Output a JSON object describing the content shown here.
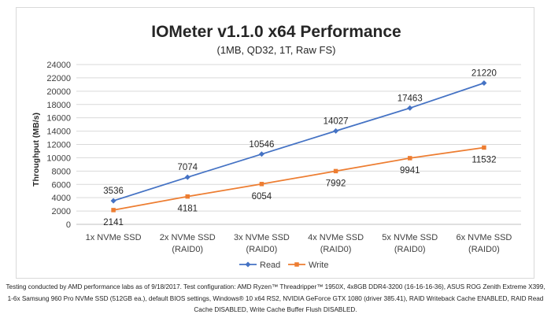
{
  "chart_data": {
    "type": "line",
    "title": "IOMeter v1.1.0 x64 Performance",
    "subtitle": "(1MB, QD32, 1T, Raw FS)",
    "xlabel": "",
    "ylabel": "Throughput (MB/s)",
    "ylim": [
      0,
      24000
    ],
    "yticks": [
      "0",
      "2000",
      "4000",
      "6000",
      "8000",
      "10000",
      "12000",
      "14000",
      "16000",
      "18000",
      "20000",
      "22000",
      "24000"
    ],
    "grid": "horizontal",
    "legend": "bottom",
    "categories": [
      [
        "1x NVMe SSD"
      ],
      [
        "2x NVMe SSD",
        "(RAID0)"
      ],
      [
        "3x NVMe SSD",
        "(RAID0)"
      ],
      [
        "4x NVMe SSD",
        "(RAID0)"
      ],
      [
        "5x NVMe SSD",
        "(RAID0)"
      ],
      [
        "6x NVMe SSD",
        "(RAID0)"
      ]
    ],
    "series": [
      {
        "name": "Read",
        "color": "#4472c4",
        "marker": "diamond",
        "label_position": "above",
        "values": [
          3536,
          7074,
          10546,
          14027,
          17463,
          21220
        ]
      },
      {
        "name": "Write",
        "color": "#ed7d31",
        "marker": "square",
        "label_position": "below",
        "values": [
          2141,
          4181,
          6054,
          7992,
          9941,
          11532
        ]
      }
    ]
  },
  "footnote": "Testing conducted by AMD performance labs as of 9/18/2017. Test configuration: AMD Ryzen™ Threadripper™ 1950X, 4x8GB DDR4-3200 (16-16-16-36), ASUS ROG Zenith Extreme X399, 1-6x Samsung 960 Pro NVMe SSD (512GB ea.), default BIOS settings, Windows® 10 x64 RS2, NVIDIA GeForce GTX 1080 (driver 385.41), RAID Writeback Cache ENABLED, RAID Read Cache DISABLED, Write Cache Buffer Flush DISABLED."
}
